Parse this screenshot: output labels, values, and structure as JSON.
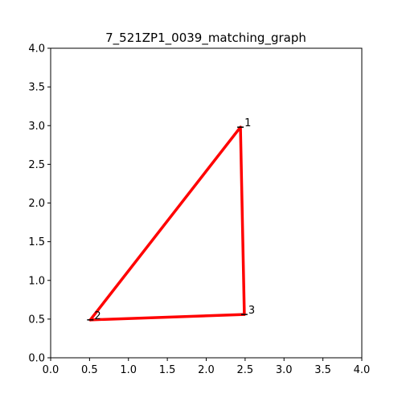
{
  "chart_data": {
    "type": "scatter",
    "title": "7_521ZP1_0039_matching_graph",
    "xlabel": "",
    "ylabel": "",
    "xlim": [
      0,
      4
    ],
    "ylim": [
      0,
      4
    ],
    "x_ticks": [
      "0.0",
      "0.5",
      "1.0",
      "1.5",
      "2.0",
      "2.5",
      "3.0",
      "3.5",
      "4.0"
    ],
    "y_ticks": [
      "0.0",
      "0.5",
      "1.0",
      "1.5",
      "2.0",
      "2.5",
      "3.0",
      "3.5",
      "4.0"
    ],
    "grid": false,
    "nodes": [
      {
        "label": "1",
        "x": 2.44,
        "y": 2.98
      },
      {
        "label": "2",
        "x": 0.51,
        "y": 0.49
      },
      {
        "label": "3",
        "x": 2.49,
        "y": 0.56
      }
    ],
    "edges": [
      {
        "from": "1",
        "to": "2"
      },
      {
        "from": "2",
        "to": "3"
      },
      {
        "from": "3",
        "to": "1"
      }
    ],
    "edge_color": "#ff0000",
    "node_color": "#000000"
  }
}
